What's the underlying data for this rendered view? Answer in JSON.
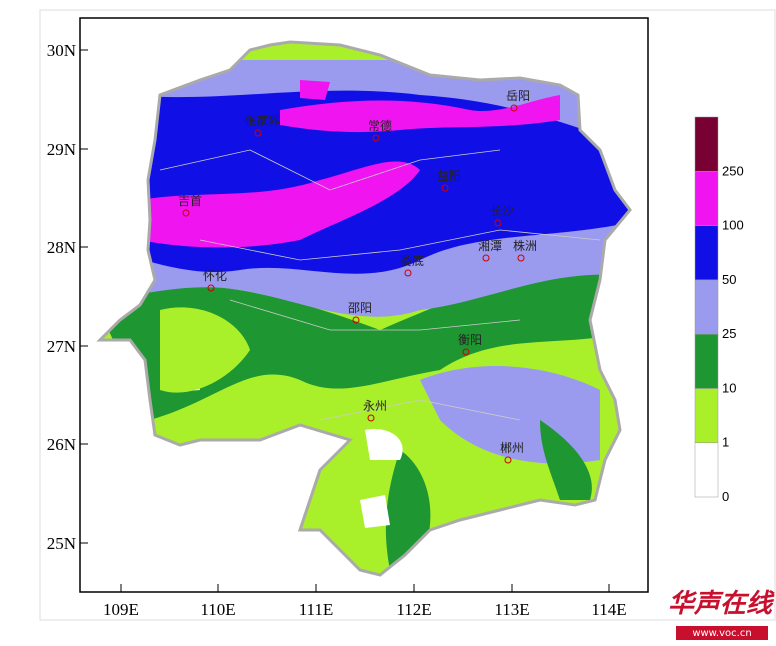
{
  "map": {
    "lat_labels": [
      "30N",
      "29N",
      "28N",
      "27N",
      "26N",
      "25N"
    ],
    "lon_labels": [
      "109E",
      "110E",
      "111E",
      "112E",
      "113E",
      "114E"
    ],
    "cities": [
      "岳阳",
      "张家界",
      "常德",
      "益阳",
      "吉首",
      "长沙",
      "湘潭",
      "株洲",
      "娄底",
      "怀化",
      "邵阳",
      "衡阳",
      "永州",
      "郴州"
    ],
    "legend": {
      "levels": [
        "0",
        "1",
        "10",
        "25",
        "50",
        "100",
        "250"
      ],
      "colors": [
        "#ffffff",
        "#aaf02a",
        "#1e9632",
        "#9a9aee",
        "#1010e6",
        "#f014f0",
        "#780032"
      ]
    }
  },
  "watermark": {
    "brand": "华声在线",
    "url": "www.voc.cn"
  }
}
